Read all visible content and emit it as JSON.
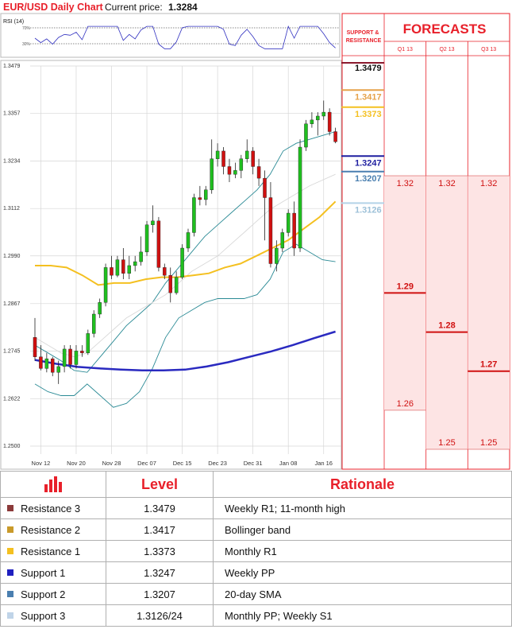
{
  "header": {
    "title": "EUR/USD Daily Chart",
    "price_label": "Current price:",
    "price_value": "1.3284"
  },
  "chart_data": {
    "type": "candlestick",
    "ylim": [
      1.25,
      1.3479
    ],
    "y_ticks": [
      "1.3479",
      "1.3357",
      "1.3234",
      "1.3112",
      "1.2990",
      "1.2867",
      "1.2745",
      "1.2622",
      "1.2500"
    ],
    "x_ticks": [
      "Nov 12",
      "Nov 20",
      "Nov 28",
      "Dec 07",
      "Dec 15",
      "Dec 23",
      "Dec 31",
      "Jan 08",
      "Jan 16"
    ],
    "rsi": {
      "label": "RSI (14)",
      "levels": [
        "70%",
        "30%"
      ]
    },
    "candles": [
      [
        1.278,
        1.283,
        1.272,
        1.273
      ],
      [
        1.273,
        1.276,
        1.2695,
        1.27
      ],
      [
        1.27,
        1.274,
        1.269,
        1.2725
      ],
      [
        1.2725,
        1.273,
        1.268,
        1.269
      ],
      [
        1.269,
        1.272,
        1.266,
        1.2705
      ],
      [
        1.2705,
        1.276,
        1.269,
        1.275
      ],
      [
        1.275,
        1.276,
        1.27,
        1.271
      ],
      [
        1.271,
        1.276,
        1.27,
        1.2745
      ],
      [
        1.2745,
        1.276,
        1.273,
        1.274
      ],
      [
        1.274,
        1.28,
        1.2735,
        1.279
      ],
      [
        1.279,
        1.285,
        1.278,
        1.284
      ],
      [
        1.284,
        1.288,
        1.283,
        1.287
      ],
      [
        1.287,
        1.297,
        1.286,
        1.296
      ],
      [
        1.296,
        1.299,
        1.293,
        1.294
      ],
      [
        1.294,
        1.299,
        1.2935,
        1.298
      ],
      [
        1.298,
        1.301,
        1.293,
        1.2945
      ],
      [
        1.2945,
        1.299,
        1.293,
        1.2965
      ],
      [
        1.2965,
        1.299,
        1.295,
        1.2975
      ],
      [
        1.2975,
        1.304,
        1.2965,
        1.3
      ],
      [
        1.3,
        1.308,
        1.299,
        1.307
      ],
      [
        1.307,
        1.312,
        1.305,
        1.308
      ],
      [
        1.308,
        1.309,
        1.295,
        1.296
      ],
      [
        1.296,
        1.297,
        1.293,
        1.294
      ],
      [
        1.294,
        1.296,
        1.287,
        1.2895
      ],
      [
        1.2895,
        1.295,
        1.289,
        1.2935
      ],
      [
        1.2935,
        1.302,
        1.293,
        1.301
      ],
      [
        1.301,
        1.306,
        1.3,
        1.305
      ],
      [
        1.305,
        1.315,
        1.304,
        1.314
      ],
      [
        1.314,
        1.317,
        1.312,
        1.3135
      ],
      [
        1.3135,
        1.317,
        1.312,
        1.316
      ],
      [
        1.316,
        1.329,
        1.315,
        1.324
      ],
      [
        1.324,
        1.328,
        1.322,
        1.326
      ],
      [
        1.326,
        1.327,
        1.32,
        1.322
      ],
      [
        1.322,
        1.324,
        1.318,
        1.32
      ],
      [
        1.32,
        1.323,
        1.319,
        1.321
      ],
      [
        1.321,
        1.325,
        1.319,
        1.324
      ],
      [
        1.324,
        1.329,
        1.323,
        1.326
      ],
      [
        1.326,
        1.327,
        1.32,
        1.322
      ],
      [
        1.322,
        1.324,
        1.317,
        1.319
      ],
      [
        1.319,
        1.321,
        1.303,
        1.314
      ],
      [
        1.314,
        1.318,
        1.296,
        1.297
      ],
      [
        1.297,
        1.303,
        1.295,
        1.301
      ],
      [
        1.301,
        1.306,
        1.3,
        1.305
      ],
      [
        1.305,
        1.311,
        1.304,
        1.31
      ],
      [
        1.31,
        1.313,
        1.299,
        1.301
      ],
      [
        1.301,
        1.329,
        1.3,
        1.327
      ],
      [
        1.327,
        1.334,
        1.326,
        1.333
      ],
      [
        1.333,
        1.336,
        1.332,
        1.334
      ],
      [
        1.334,
        1.336,
        1.33,
        1.335
      ],
      [
        1.335,
        1.339,
        1.334,
        1.336
      ],
      [
        1.336,
        1.337,
        1.33,
        1.331
      ],
      [
        1.331,
        1.332,
        1.328,
        1.3284
      ]
    ],
    "bollinger_upper": [
      1.276,
      1.274,
      1.272,
      1.2695,
      1.269,
      1.273,
      1.277,
      1.281,
      1.284,
      1.287,
      1.292,
      1.296,
      1.3,
      1.304,
      1.307,
      1.31,
      1.313,
      1.316,
      1.32,
      1.326,
      1.328,
      1.329,
      1.33,
      1.331
    ],
    "bollinger_lower": [
      1.266,
      1.264,
      1.263,
      1.263,
      1.266,
      1.263,
      1.26,
      1.261,
      1.264,
      1.27,
      1.278,
      1.283,
      1.285,
      1.287,
      1.288,
      1.288,
      1.288,
      1.289,
      1.293,
      1.3,
      1.302,
      1.3,
      1.298,
      1.2975
    ],
    "sma_20": [
      1.278,
      1.276,
      1.274,
      1.273,
      1.274,
      1.277,
      1.28,
      1.283,
      1.285,
      1.287,
      1.289,
      1.292,
      1.295,
      1.297,
      1.299,
      1.302,
      1.305,
      1.308,
      1.311,
      1.313,
      1.315,
      1.317,
      1.3185,
      1.32
    ],
    "sma_50": [
      1.2965,
      1.2965,
      1.296,
      1.294,
      1.2915,
      1.292,
      1.292,
      1.293,
      1.2935,
      1.2935,
      1.294,
      1.2945,
      1.296,
      1.297,
      1.299,
      1.301,
      1.303,
      1.306,
      1.309,
      1.313
    ],
    "sma_200": [
      1.2722,
      1.2712,
      1.2704,
      1.27,
      1.2697,
      1.2695,
      1.2695,
      1.2697,
      1.2705,
      1.2716,
      1.273,
      1.2744,
      1.276,
      1.2778,
      1.2795
    ],
    "levels": [
      {
        "label": "1.3479",
        "value": 1.3479,
        "color": "#8b1a2e"
      },
      {
        "label": "1.3417",
        "value": 1.3417,
        "color": "#e6a24a"
      },
      {
        "label": "1.3373",
        "value": 1.3373,
        "color": "#f4c020"
      },
      {
        "label": "1.3247",
        "value": 1.3247,
        "color": "#1f1fa0"
      },
      {
        "label": "1.3207",
        "value": 1.3207,
        "color": "#4a7fb0"
      },
      {
        "label": "1.3126",
        "value": 1.3126,
        "color": "#b3d3e8"
      }
    ]
  },
  "forecasts": {
    "sr_label": "SUPPORT & RESISTANCE",
    "title": "FORECASTS",
    "quarters": [
      {
        "label": "Q1 13",
        "high": "1.32",
        "mid": "1.29",
        "low": "1.26"
      },
      {
        "label": "Q2 13",
        "high": "1.32",
        "mid": "1.28",
        "low": "1.25"
      },
      {
        "label": "Q3 13",
        "high": "1.32",
        "mid": "1.27",
        "low": "1.25"
      }
    ],
    "scale": {
      "top": 1.32,
      "bottom": 1.25
    }
  },
  "table": {
    "header": {
      "level": "Level",
      "rationale": "Rationale"
    },
    "rows": [
      {
        "name": "Resistance 3",
        "level": "1.3479",
        "rationale": "Weekly R1; 11-month high",
        "color": "#8b3a3a"
      },
      {
        "name": "Resistance 2",
        "level": "1.3417",
        "rationale": "Bollinger band",
        "color": "#c99a2a"
      },
      {
        "name": "Resistance 1",
        "level": "1.3373",
        "rationale": "Monthly R1",
        "color": "#f4c020"
      },
      {
        "name": "Support 1",
        "level": "1.3247",
        "rationale": "Weekly PP",
        "color": "#1f1fc0"
      },
      {
        "name": "Support 2",
        "level": "1.3207",
        "rationale": "20-day SMA",
        "color": "#4a7fb0"
      },
      {
        "name": "Support 3",
        "level": "1.3126/24",
        "rationale": "Monthly PP; Weekly S1",
        "color": "#c0d4e8"
      }
    ]
  }
}
